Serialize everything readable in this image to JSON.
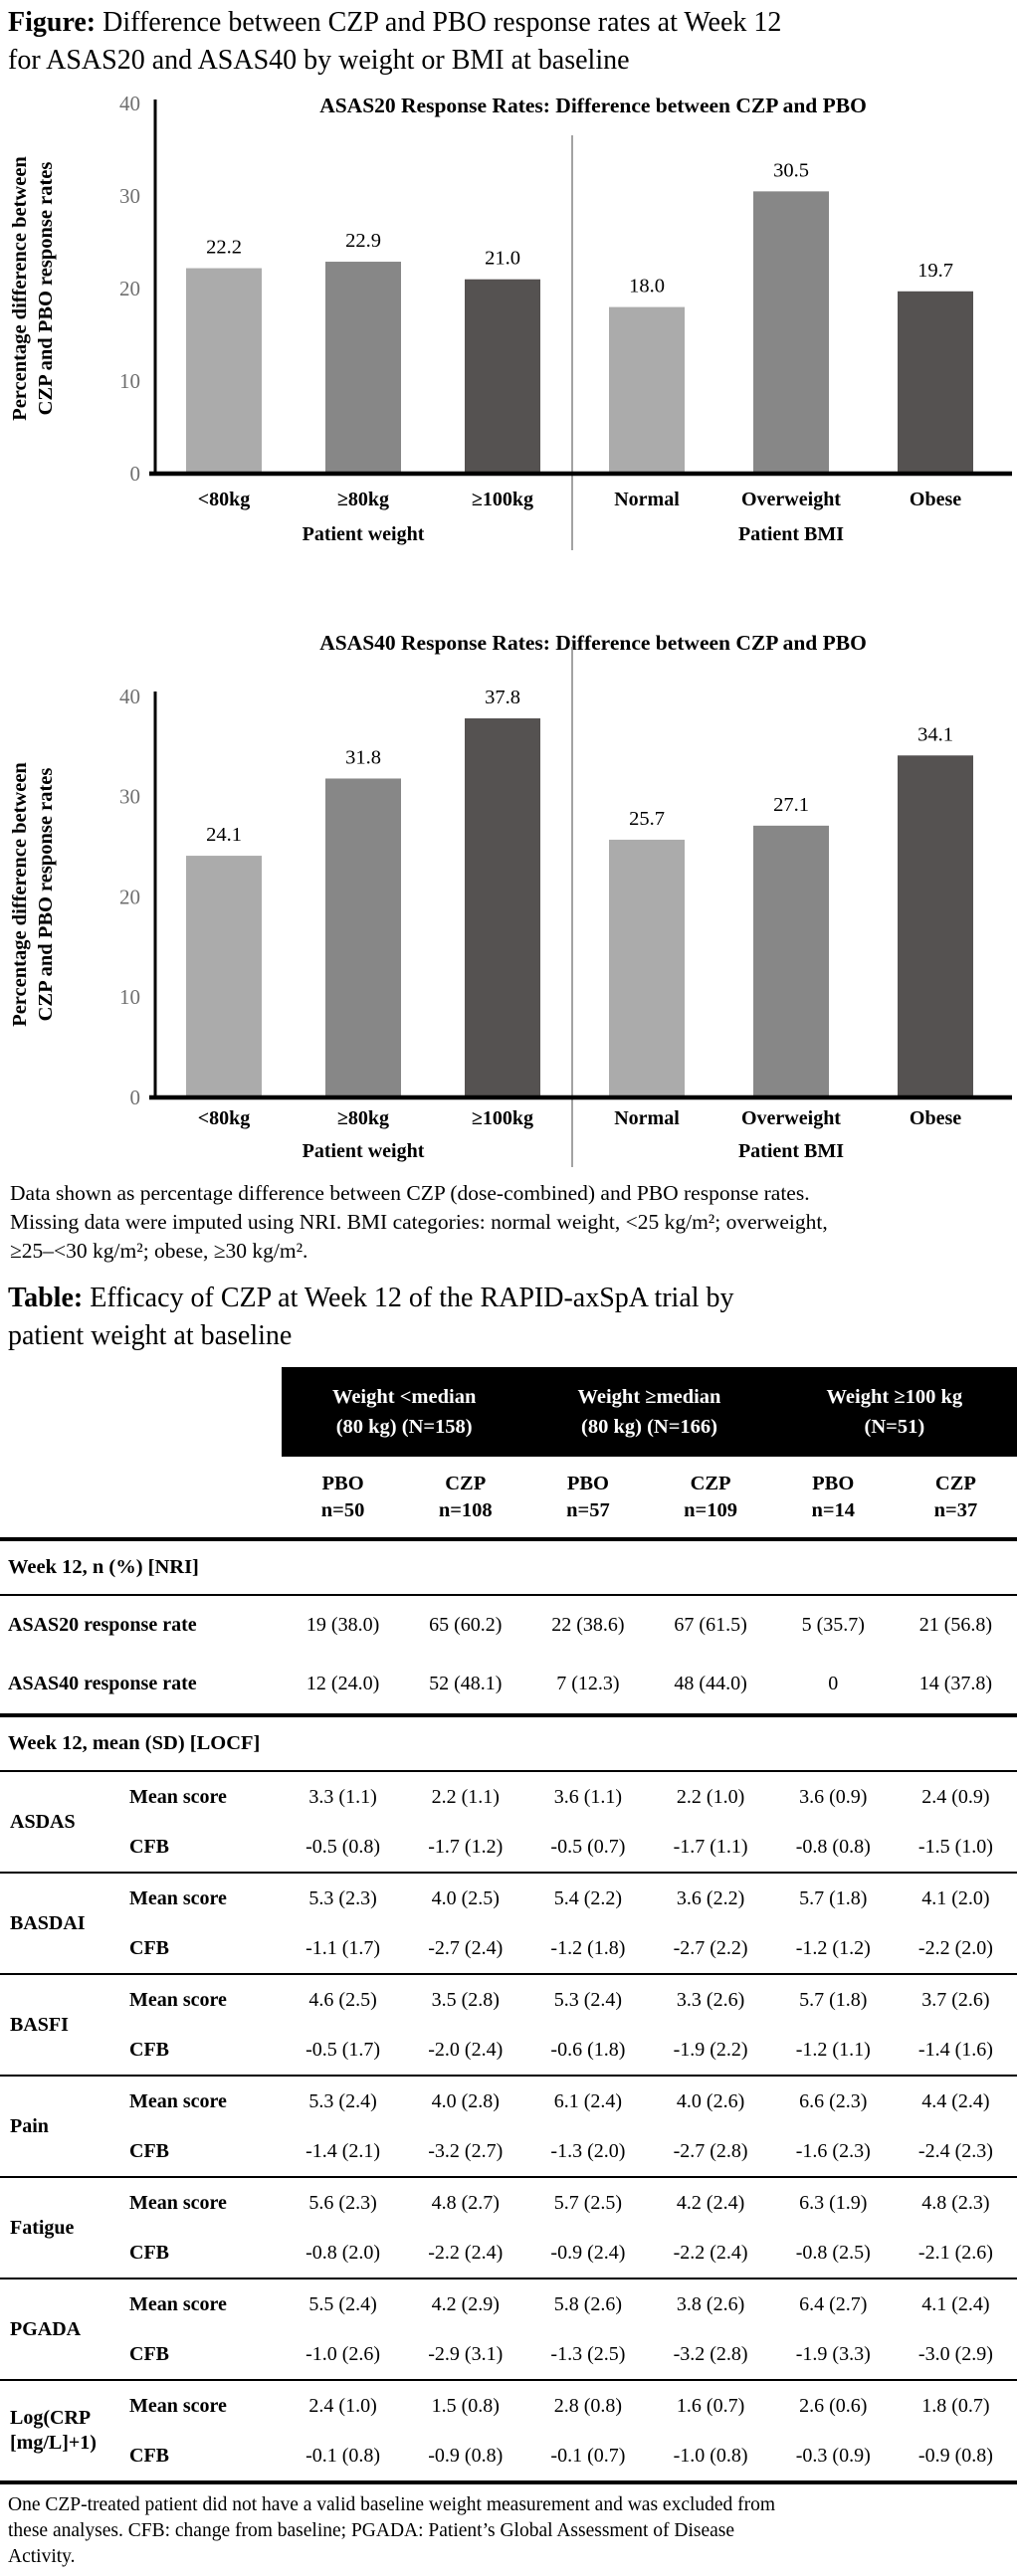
{
  "figure": {
    "caption_label": "Figure:",
    "caption_line1": " Difference between CZP and PBO response rates at Week 12",
    "caption_line2": "for ASAS20 and ASAS40 by weight or BMI at baseline",
    "footnote_lines": [
      "Data shown as percentage difference between CZP (dose-combined) and PBO response rates.",
      "Missing data were imputed using NRI. BMI categories: normal weight, <25 kg/m²; overweight,",
      "≥25–<30 kg/m²; obese, ≥30 kg/m²."
    ]
  },
  "colors": {
    "bar_light": "#ababab",
    "bar_mid": "#878787",
    "bar_dark": "#555251",
    "tick_label": "#6e6e6e",
    "divider_line": "#999999",
    "axis_line": "#000000",
    "band_bg": "#000000",
    "band_text": "#ffffff"
  },
  "chart_data": [
    {
      "type": "bar",
      "title": "ASAS20 Response Rates: Difference between CZP and PBO",
      "ylabel": "Percentage difference between CZP and PBO response rates",
      "ylabel_lines": [
        "Percentage difference between",
        "CZP and PBO response rates"
      ],
      "xlabel": "",
      "ylim": [
        0,
        40
      ],
      "yticks": [
        0,
        10,
        20,
        30,
        40
      ],
      "grid": false,
      "legend": false,
      "categories": [
        "<80kg",
        "≥80kg",
        "≥100kg",
        "Normal",
        "Overweight",
        "Obese"
      ],
      "values": [
        22.2,
        22.9,
        21.0,
        18.0,
        30.5,
        19.7
      ],
      "value_labels": [
        "22.2",
        "22.9",
        "21.0",
        "18.0",
        "30.5",
        "19.7"
      ],
      "group_labels": [
        "Patient weight",
        "Patient BMI"
      ],
      "bar_colors": [
        "#ababab",
        "#878787",
        "#555251",
        "#ababab",
        "#878787",
        "#555251"
      ]
    },
    {
      "type": "bar",
      "title": "ASAS40 Response Rates: Difference between CZP and PBO",
      "ylabel": "Percentage difference between CZP and PBO response rates",
      "ylabel_lines": [
        "Percentage difference between",
        "CZP and PBO response rates"
      ],
      "xlabel": "",
      "ylim": [
        0,
        40
      ],
      "yticks": [
        0,
        10,
        20,
        30,
        40
      ],
      "grid": false,
      "legend": false,
      "categories": [
        "<80kg",
        "≥80kg",
        "≥100kg",
        "Normal",
        "Overweight",
        "Obese"
      ],
      "values": [
        24.1,
        31.8,
        37.8,
        25.7,
        27.1,
        34.1
      ],
      "value_labels": [
        "24.1",
        "31.8",
        "37.8",
        "25.7",
        "27.1",
        "34.1"
      ],
      "group_labels": [
        "Patient weight",
        "Patient BMI"
      ],
      "bar_colors": [
        "#ababab",
        "#878787",
        "#555251",
        "#ababab",
        "#878787",
        "#555251"
      ]
    }
  ],
  "table": {
    "caption_label": "Table:",
    "caption_line1": " Efficacy of CZP at Week 12 of the RAPID-axSpA trial by",
    "caption_line2": "patient weight at baseline",
    "column_groups": [
      {
        "line1": "Weight <median",
        "line2": "(80 kg) (N=158)"
      },
      {
        "line1": "Weight ≥median",
        "line2": "(80 kg) (N=166)"
      },
      {
        "line1": "Weight ≥100 kg",
        "line2": "(N=51)"
      }
    ],
    "subcolumns": [
      {
        "arm": "PBO",
        "n": "n=50"
      },
      {
        "arm": "CZP",
        "n": "n=108"
      },
      {
        "arm": "PBO",
        "n": "n=57"
      },
      {
        "arm": "CZP",
        "n": "n=109"
      },
      {
        "arm": "PBO",
        "n": "n=14"
      },
      {
        "arm": "CZP",
        "n": "n=37"
      }
    ],
    "sections": [
      {
        "header": "Week 12, n (%) [NRI]",
        "rows": [
          {
            "label": "ASAS20 response rate",
            "values": [
              "19 (38.0)",
              "65 (60.2)",
              "22 (38.6)",
              "67 (61.5)",
              "5 (35.7)",
              "21 (56.8)"
            ]
          },
          {
            "label": "ASAS40 response rate",
            "values": [
              "12 (24.0)",
              "52 (48.1)",
              "7 (12.3)",
              "48 (44.0)",
              "0",
              "14 (37.8)"
            ]
          }
        ]
      },
      {
        "header": "Week 12, mean (SD) [LOCF]",
        "groups": [
          {
            "label": "ASDAS",
            "rows": [
              {
                "label": "Mean score",
                "values": [
                  "3.3 (1.1)",
                  "2.2 (1.1)",
                  "3.6 (1.1)",
                  "2.2 (1.0)",
                  "3.6 (0.9)",
                  "2.4 (0.9)"
                ]
              },
              {
                "label": "CFB",
                "values": [
                  "-0.5 (0.8)",
                  "-1.7 (1.2)",
                  "-0.5 (0.7)",
                  "-1.7 (1.1)",
                  "-0.8 (0.8)",
                  "-1.5 (1.0)"
                ]
              }
            ]
          },
          {
            "label": "BASDAI",
            "rows": [
              {
                "label": "Mean score",
                "values": [
                  "5.3 (2.3)",
                  "4.0 (2.5)",
                  "5.4 (2.2)",
                  "3.6 (2.2)",
                  "5.7 (1.8)",
                  "4.1 (2.0)"
                ]
              },
              {
                "label": "CFB",
                "values": [
                  "-1.1 (1.7)",
                  "-2.7 (2.4)",
                  "-1.2 (1.8)",
                  "-2.7 (2.2)",
                  "-1.2 (1.2)",
                  "-2.2 (2.0)"
                ]
              }
            ]
          },
          {
            "label": "BASFI",
            "rows": [
              {
                "label": "Mean score",
                "values": [
                  "4.6 (2.5)",
                  "3.5 (2.8)",
                  "5.3 (2.4)",
                  "3.3 (2.6)",
                  "5.7 (1.8)",
                  "3.7 (2.6)"
                ]
              },
              {
                "label": "CFB",
                "values": [
                  "-0.5 (1.7)",
                  "-2.0 (2.4)",
                  "-0.6 (1.8)",
                  "-1.9 (2.2)",
                  "-1.2 (1.1)",
                  "-1.4 (1.6)"
                ]
              }
            ]
          },
          {
            "label": "Pain",
            "rows": [
              {
                "label": "Mean score",
                "values": [
                  "5.3 (2.4)",
                  "4.0 (2.8)",
                  "6.1 (2.4)",
                  "4.0 (2.6)",
                  "6.6 (2.3)",
                  "4.4 (2.4)"
                ]
              },
              {
                "label": "CFB",
                "values": [
                  "-1.4 (2.1)",
                  "-3.2 (2.7)",
                  "-1.3 (2.0)",
                  "-2.7 (2.8)",
                  "-1.6 (2.3)",
                  "-2.4 (2.3)"
                ]
              }
            ]
          },
          {
            "label": "Fatigue",
            "rows": [
              {
                "label": "Mean score",
                "values": [
                  "5.6 (2.3)",
                  "4.8 (2.7)",
                  "5.7 (2.5)",
                  "4.2 (2.4)",
                  "6.3 (1.9)",
                  "4.8 (2.3)"
                ]
              },
              {
                "label": "CFB",
                "values": [
                  "-0.8 (2.0)",
                  "-2.2 (2.4)",
                  "-0.9 (2.4)",
                  "-2.2 (2.4)",
                  "-0.8 (2.5)",
                  "-2.1 (2.6)"
                ]
              }
            ]
          },
          {
            "label": "PGADA",
            "rows": [
              {
                "label": "Mean score",
                "values": [
                  "5.5 (2.4)",
                  "4.2 (2.9)",
                  "5.8 (2.6)",
                  "3.8 (2.6)",
                  "6.4 (2.7)",
                  "4.1 (2.4)"
                ]
              },
              {
                "label": "CFB",
                "values": [
                  "-1.0 (2.6)",
                  "-2.9 (3.1)",
                  "-1.3 (2.5)",
                  "-3.2 (2.8)",
                  "-1.9 (3.3)",
                  "-3.0 (2.9)"
                ]
              }
            ]
          },
          {
            "label": "Log(CRP [mg/L]+1)",
            "rows": [
              {
                "label": "Mean score",
                "values": [
                  "2.4 (1.0)",
                  "1.5 (0.8)",
                  "2.8 (0.8)",
                  "1.6 (0.7)",
                  "2.6 (0.6)",
                  "1.8 (0.7)"
                ]
              },
              {
                "label": "CFB",
                "values": [
                  "-0.1 (0.8)",
                  "-0.9 (0.8)",
                  "-0.1 (0.7)",
                  "-1.0 (0.8)",
                  "-0.3 (0.9)",
                  "-0.9 (0.8)"
                ]
              }
            ]
          }
        ]
      }
    ],
    "footnote_lines": [
      "One CZP-treated patient did not have a valid baseline weight measurement and was excluded from",
      "these analyses. CFB: change from baseline; PGADA: Patient’s Global Assessment of Disease",
      "Activity."
    ]
  }
}
